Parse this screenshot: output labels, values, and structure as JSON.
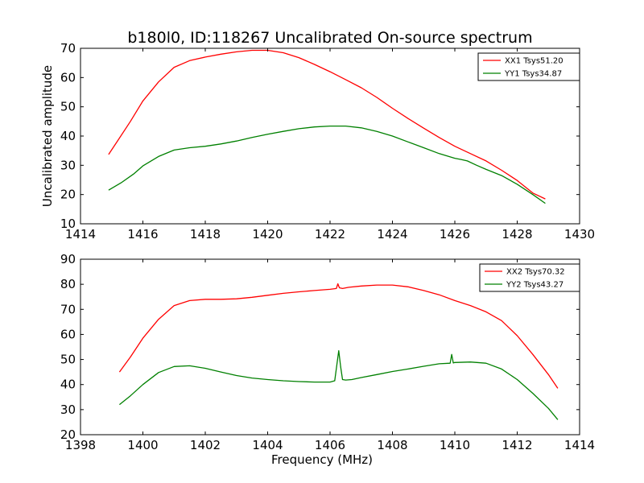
{
  "figure": {
    "title": "b180l0, ID:118267 Uncalibrated On-source spectrum"
  },
  "chart_data": [
    {
      "type": "line",
      "title": "b180l0, ID:118267 Uncalibrated On-source spectrum",
      "xlabel": "",
      "ylabel": "Uncalibrated amplitude",
      "xlim": [
        1414,
        1430
      ],
      "ylim": [
        10,
        70
      ],
      "xticks": [
        1414,
        1416,
        1418,
        1420,
        1422,
        1424,
        1426,
        1428,
        1430
      ],
      "yticks": [
        10,
        20,
        30,
        40,
        50,
        60,
        70
      ],
      "grid": false,
      "legend_position": "top-right",
      "series": [
        {
          "name": "XX1 Tsys51.20",
          "color": "#ff0000",
          "x": [
            1414.9,
            1415.2,
            1415.6,
            1416.0,
            1416.5,
            1417.0,
            1417.5,
            1418.0,
            1418.5,
            1419.0,
            1419.5,
            1420.0,
            1420.5,
            1421.0,
            1421.5,
            1422.0,
            1422.5,
            1423.0,
            1423.5,
            1424.0,
            1424.5,
            1425.0,
            1425.5,
            1426.0,
            1426.5,
            1427.0,
            1427.5,
            1428.0,
            1428.5,
            1428.9
          ],
          "y": [
            33.7,
            38.5,
            45.0,
            52.0,
            58.5,
            63.5,
            65.8,
            67.0,
            68.0,
            68.8,
            69.3,
            69.3,
            68.5,
            66.8,
            64.5,
            62.0,
            59.3,
            56.5,
            53.2,
            49.5,
            46.0,
            42.7,
            39.5,
            36.5,
            34.0,
            31.5,
            28.3,
            24.8,
            20.5,
            18.5
          ]
        },
        {
          "name": "YY1 Tsys34.87",
          "color": "#008000",
          "x": [
            1414.9,
            1415.3,
            1415.7,
            1416.0,
            1416.5,
            1417.0,
            1417.5,
            1418.0,
            1418.5,
            1419.0,
            1419.5,
            1420.0,
            1420.5,
            1421.0,
            1421.5,
            1422.0,
            1422.5,
            1423.0,
            1423.5,
            1424.0,
            1424.5,
            1425.0,
            1425.5,
            1426.0,
            1426.2,
            1426.4,
            1426.7,
            1427.0,
            1427.5,
            1428.0,
            1428.5,
            1428.9
          ],
          "y": [
            21.5,
            24.0,
            27.0,
            29.8,
            33.0,
            35.2,
            36.0,
            36.5,
            37.3,
            38.3,
            39.5,
            40.6,
            41.6,
            42.5,
            43.1,
            43.4,
            43.4,
            42.8,
            41.6,
            40.0,
            38.0,
            36.0,
            34.0,
            32.4,
            32.0,
            31.5,
            30.0,
            28.6,
            26.5,
            23.5,
            20.0,
            17.0
          ]
        }
      ]
    },
    {
      "type": "line",
      "title": "",
      "xlabel": "Frequency (MHz)",
      "ylabel": "",
      "xlim": [
        1398,
        1414
      ],
      "ylim": [
        20,
        90
      ],
      "xticks": [
        1398,
        1400,
        1402,
        1404,
        1406,
        1408,
        1410,
        1412,
        1414
      ],
      "yticks": [
        20,
        30,
        40,
        50,
        60,
        70,
        80,
        90
      ],
      "grid": false,
      "legend_position": "top-right",
      "series": [
        {
          "name": "XX2 Tsys70.32",
          "color": "#ff0000",
          "x": [
            1399.25,
            1399.6,
            1400.0,
            1400.5,
            1401.0,
            1401.5,
            1402.0,
            1402.5,
            1403.0,
            1403.5,
            1404.0,
            1404.5,
            1405.0,
            1405.5,
            1406.0,
            1406.2,
            1406.25,
            1406.3,
            1406.4,
            1406.6,
            1407.0,
            1407.5,
            1408.0,
            1408.5,
            1409.0,
            1409.5,
            1410.0,
            1410.5,
            1411.0,
            1411.5,
            1412.0,
            1412.5,
            1413.0,
            1413.3
          ],
          "y": [
            45.0,
            51.0,
            58.5,
            66.0,
            71.5,
            73.5,
            74.0,
            74.0,
            74.2,
            74.8,
            75.6,
            76.4,
            77.0,
            77.5,
            78.0,
            78.3,
            80.2,
            78.6,
            78.3,
            78.8,
            79.3,
            79.7,
            79.7,
            79.0,
            77.5,
            75.8,
            73.5,
            71.5,
            69.0,
            65.5,
            59.5,
            52.0,
            44.0,
            38.5
          ]
        },
        {
          "name": "YY2 Tsys43.27",
          "color": "#008000",
          "x": [
            1399.25,
            1399.6,
            1400.0,
            1400.5,
            1401.0,
            1401.5,
            1402.0,
            1402.5,
            1403.0,
            1403.5,
            1404.0,
            1404.5,
            1405.0,
            1405.5,
            1406.0,
            1406.15,
            1406.22,
            1406.28,
            1406.34,
            1406.4,
            1406.5,
            1406.7,
            1407.0,
            1407.5,
            1408.0,
            1408.5,
            1409.0,
            1409.5,
            1409.85,
            1409.9,
            1409.95,
            1410.0,
            1410.5,
            1411.0,
            1411.5,
            1412.0,
            1412.5,
            1413.0,
            1413.3
          ],
          "y": [
            32.0,
            35.5,
            40.0,
            44.8,
            47.2,
            47.5,
            46.5,
            45.0,
            43.6,
            42.6,
            42.0,
            41.5,
            41.2,
            41.0,
            41.0,
            41.5,
            48.0,
            53.5,
            47.0,
            42.0,
            41.8,
            42.0,
            42.8,
            44.0,
            45.2,
            46.2,
            47.3,
            48.3,
            48.5,
            52.0,
            48.6,
            48.8,
            49.0,
            48.5,
            46.2,
            42.0,
            36.5,
            30.5,
            26.0
          ]
        }
      ]
    }
  ]
}
